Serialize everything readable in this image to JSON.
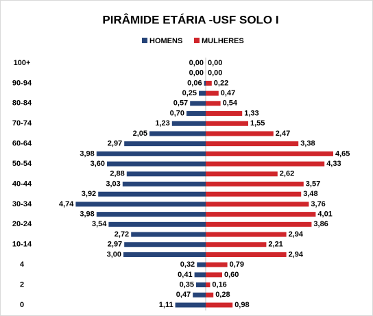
{
  "chart_data": {
    "type": "pyramid",
    "title": "PIRÂMIDE ETÁRIA -USF SOLO I",
    "categories": [
      "100+",
      null,
      "90-94",
      null,
      "80-84",
      null,
      "70-74",
      null,
      "60-64",
      null,
      "50-54",
      null,
      "40-44",
      null,
      "30-34",
      null,
      "20-24",
      null,
      "10-14",
      null,
      "4",
      null,
      "2",
      null,
      "0"
    ],
    "series": [
      {
        "name": "HOMENS",
        "color": "#264478",
        "values": [
          0,
          0,
          0.06,
          0.25,
          0.57,
          0.7,
          1.23,
          2.05,
          2.97,
          3.98,
          3.6,
          2.88,
          3.03,
          3.92,
          4.74,
          3.98,
          3.54,
          2.72,
          2.97,
          3.0,
          0.32,
          0.41,
          0.35,
          0.47,
          1.11
        ],
        "value_labels": [
          "0,00",
          "0,00",
          "0,06",
          "0,25",
          "0,57",
          "0,70",
          "1,23",
          "2,05",
          "2,97",
          "3,98",
          "3,60",
          "2,88",
          "3,03",
          "3,92",
          "4,74",
          "3,98",
          "3,54",
          "2,72",
          "2,97",
          "3,00",
          "0,32",
          "0,41",
          "0,35",
          "0,47",
          "1,11"
        ]
      },
      {
        "name": "MULHERES",
        "color": "#d0262b",
        "values": [
          0,
          0,
          0.22,
          0.47,
          0.54,
          1.33,
          1.55,
          2.47,
          3.38,
          4.65,
          4.33,
          2.62,
          3.57,
          3.48,
          3.76,
          4.01,
          3.86,
          2.94,
          2.21,
          2.94,
          0.79,
          0.6,
          0.16,
          0.28,
          0.98
        ],
        "value_labels": [
          "0,00",
          "0,00",
          "0,22",
          "0,47",
          "0,54",
          "1,33",
          "1,55",
          "2,47",
          "3,38",
          "4,65",
          "4,33",
          "2,62",
          "3,57",
          "3,48",
          "3,76",
          "4,01",
          "3,86",
          "2,94",
          "2,21",
          "2,94",
          "0,79",
          "0,60",
          "0,16",
          "0,28",
          "0,98"
        ]
      }
    ]
  }
}
